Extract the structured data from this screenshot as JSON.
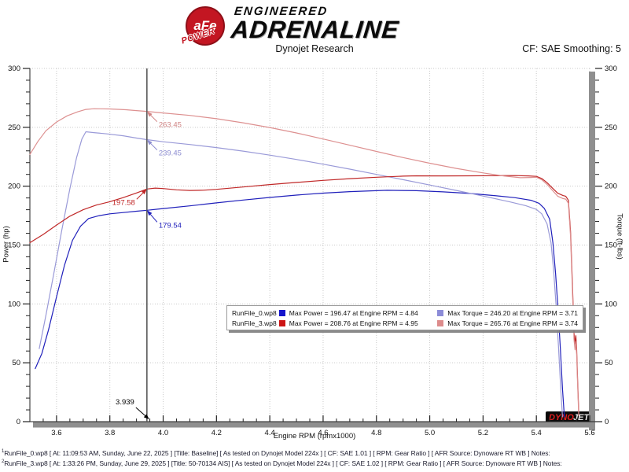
{
  "header": {
    "brand_circle": "aFe",
    "brand_ribbon": "POWER",
    "brand_line1": "ENGINEERED",
    "brand_line2": "ADRENALINE",
    "report_title": "Dynojet Research",
    "cf_setting": "CF: SAE Smoothing: 5"
  },
  "chart_data": {
    "type": "line",
    "axes": {
      "x": {
        "min": 3.5,
        "max": 5.6,
        "major": 0.2,
        "minor": 0.05,
        "first_major": 3.6,
        "label": "Engine RPM (rpmx1000)"
      },
      "y": {
        "min": 0,
        "max": 300,
        "major": 50,
        "minor": 10,
        "left_label": "Power (hp)",
        "right_label": "Torque (ft-lbs)"
      }
    },
    "grid": "dotted",
    "series": [
      {
        "name": "RunFile_0 Power (hp)",
        "color": "#2020bb",
        "points": [
          [
            3.52,
            45
          ],
          [
            3.545,
            58
          ],
          [
            3.57,
            78
          ],
          [
            3.6,
            106
          ],
          [
            3.63,
            133
          ],
          [
            3.66,
            154
          ],
          [
            3.69,
            166
          ],
          [
            3.72,
            172.5
          ],
          [
            3.76,
            175
          ],
          [
            3.8,
            176.5
          ],
          [
            3.85,
            177.6
          ],
          [
            3.9,
            178.7
          ],
          [
            3.939,
            179.5
          ],
          [
            4.0,
            181
          ],
          [
            4.1,
            183.3
          ],
          [
            4.2,
            185.8
          ],
          [
            4.3,
            188.2
          ],
          [
            4.4,
            190.4
          ],
          [
            4.5,
            192.4
          ],
          [
            4.6,
            194.1
          ],
          [
            4.7,
            195.4
          ],
          [
            4.84,
            196.5
          ],
          [
            4.95,
            196.2
          ],
          [
            5.05,
            195.2
          ],
          [
            5.15,
            193.8
          ],
          [
            5.25,
            191.8
          ],
          [
            5.32,
            190.2
          ],
          [
            5.38,
            188
          ],
          [
            5.41,
            185.5
          ],
          [
            5.43,
            181
          ],
          [
            5.45,
            172
          ],
          [
            5.462,
            152
          ],
          [
            5.472,
            126
          ],
          [
            5.481,
            96
          ],
          [
            5.49,
            62
          ],
          [
            5.498,
            28
          ],
          [
            5.505,
            4
          ]
        ]
      },
      {
        "name": "RunFile_0 Torque (ft-lbs)",
        "color": "#9a9ad8",
        "points": [
          [
            3.535,
            62
          ],
          [
            3.56,
            90
          ],
          [
            3.59,
            126
          ],
          [
            3.62,
            163
          ],
          [
            3.65,
            198
          ],
          [
            3.675,
            224
          ],
          [
            3.695,
            240
          ],
          [
            3.71,
            246.2
          ],
          [
            3.74,
            245.5
          ],
          [
            3.79,
            244.4
          ],
          [
            3.85,
            242.8
          ],
          [
            3.9,
            240.9
          ],
          [
            3.939,
            239.5
          ],
          [
            4.0,
            237.7
          ],
          [
            4.1,
            235.4
          ],
          [
            4.2,
            232.8
          ],
          [
            4.3,
            229.8
          ],
          [
            4.4,
            226.4
          ],
          [
            4.5,
            222.7
          ],
          [
            4.6,
            218.7
          ],
          [
            4.7,
            214.5
          ],
          [
            4.8,
            210
          ],
          [
            4.9,
            205.5
          ],
          [
            5.0,
            201
          ],
          [
            5.1,
            196.4
          ],
          [
            5.2,
            191.6
          ],
          [
            5.3,
            186.7
          ],
          [
            5.36,
            183.5
          ],
          [
            5.4,
            180.3
          ],
          [
            5.42,
            176.5
          ],
          [
            5.44,
            168
          ],
          [
            5.455,
            152
          ],
          [
            5.465,
            128
          ],
          [
            5.474,
            98
          ],
          [
            5.483,
            64
          ],
          [
            5.491,
            30
          ],
          [
            5.498,
            4
          ]
        ]
      },
      {
        "name": "RunFile_3 Power (hp)",
        "color": "#c02828",
        "points": [
          [
            3.5,
            152
          ],
          [
            3.55,
            159
          ],
          [
            3.6,
            167
          ],
          [
            3.65,
            174.5
          ],
          [
            3.7,
            180
          ],
          [
            3.75,
            184
          ],
          [
            3.8,
            186.8
          ],
          [
            3.85,
            190.3
          ],
          [
            3.9,
            194.2
          ],
          [
            3.939,
            197.6
          ],
          [
            3.97,
            198.4
          ],
          [
            4.0,
            198
          ],
          [
            4.05,
            196.9
          ],
          [
            4.1,
            196.4
          ],
          [
            4.15,
            196.6
          ],
          [
            4.2,
            197.3
          ],
          [
            4.3,
            199.3
          ],
          [
            4.4,
            201.4
          ],
          [
            4.5,
            203.2
          ],
          [
            4.6,
            204.9
          ],
          [
            4.7,
            206.4
          ],
          [
            4.8,
            207.6
          ],
          [
            4.9,
            208.5
          ],
          [
            4.95,
            208.8
          ],
          [
            5.05,
            208.7
          ],
          [
            5.15,
            208.8
          ],
          [
            5.25,
            208.9
          ],
          [
            5.32,
            209
          ],
          [
            5.37,
            208.7
          ],
          [
            5.4,
            208.3
          ],
          [
            5.42,
            206.5
          ],
          [
            5.44,
            203
          ],
          [
            5.46,
            198.5
          ],
          [
            5.48,
            194
          ],
          [
            5.5,
            192
          ],
          [
            5.51,
            191.5
          ],
          [
            5.52,
            188
          ],
          [
            5.528,
            162
          ],
          [
            5.535,
            118
          ],
          [
            5.541,
            76
          ],
          [
            5.545,
            66
          ],
          [
            5.548,
            73
          ],
          [
            5.551,
            62
          ],
          [
            5.555,
            34
          ],
          [
            5.559,
            8
          ]
        ]
      },
      {
        "name": "RunFile_3 Torque (ft-lbs)",
        "color": "#dd9090",
        "points": [
          [
            3.5,
            227
          ],
          [
            3.53,
            238
          ],
          [
            3.56,
            247
          ],
          [
            3.6,
            254.5
          ],
          [
            3.64,
            259.8
          ],
          [
            3.68,
            263.2
          ],
          [
            3.71,
            265.2
          ],
          [
            3.74,
            265.8
          ],
          [
            3.8,
            265.6
          ],
          [
            3.86,
            264.9
          ],
          [
            3.9,
            264.2
          ],
          [
            3.939,
            263.5
          ],
          [
            4.0,
            262.2
          ],
          [
            4.1,
            260.1
          ],
          [
            4.2,
            257.3
          ],
          [
            4.3,
            253.8
          ],
          [
            4.4,
            249.8
          ],
          [
            4.5,
            245.2
          ],
          [
            4.6,
            240.1
          ],
          [
            4.7,
            234.8
          ],
          [
            4.8,
            229.5
          ],
          [
            4.9,
            224.3
          ],
          [
            5.0,
            219.5
          ],
          [
            5.1,
            215.1
          ],
          [
            5.2,
            211.3
          ],
          [
            5.28,
            208.6
          ],
          [
            5.34,
            207.2
          ],
          [
            5.38,
            207.4
          ],
          [
            5.4,
            207.6
          ],
          [
            5.42,
            205.5
          ],
          [
            5.44,
            201.5
          ],
          [
            5.46,
            196.5
          ],
          [
            5.48,
            191.5
          ],
          [
            5.5,
            189.5
          ],
          [
            5.51,
            189
          ],
          [
            5.52,
            185.5
          ],
          [
            5.528,
            158
          ],
          [
            5.535,
            112
          ],
          [
            5.541,
            70
          ],
          [
            5.545,
            61
          ],
          [
            5.548,
            68
          ],
          [
            5.551,
            57
          ],
          [
            5.555,
            30
          ],
          [
            5.559,
            5
          ]
        ]
      }
    ],
    "cursor": {
      "x": 3.939,
      "x_label": "3.939",
      "markers": [
        {
          "label": "263.45",
          "value": 263.45,
          "color": "#d08484",
          "tail": [
            13,
            13
          ],
          "text": [
            15,
            20
          ],
          "anchor": "start"
        },
        {
          "label": "239.45",
          "value": 239.45,
          "color": "#8c8cd0",
          "tail": [
            13,
            13
          ],
          "text": [
            15,
            20
          ],
          "anchor": "start"
        },
        {
          "label": "197.58",
          "value": 197.58,
          "color": "#c02828",
          "tail": [
            -13,
            13
          ],
          "text": [
            -15,
            20
          ],
          "anchor": "end"
        },
        {
          "label": "179.54",
          "value": 179.54,
          "color": "#2020bb",
          "tail": [
            13,
            15
          ],
          "text": [
            15,
            22
          ],
          "anchor": "start"
        }
      ]
    },
    "legend": {
      "rows": [
        {
          "file": "RunFile_0.wp8",
          "power_color": "#1414cc",
          "power_text": "Max Power = 196.47 at Engine RPM = 4.84",
          "torque_color": "#8c8cd8",
          "torque_text": "Max Torque = 246.20 at Engine RPM = 3.71"
        },
        {
          "file": "RunFile_3.wp8",
          "power_color": "#cc1414",
          "power_text": "Max Power = 208.76 at Engine RPM = 4.95",
          "torque_color": "#dd8c8c",
          "torque_text": "Max Torque = 265.76 at Engine RPM = 3.74"
        }
      ]
    },
    "watermark": {
      "dyno": "DYNO",
      "jet": "JET"
    }
  },
  "footer": {
    "lines": [
      {
        "sup": "1",
        "text": "RunFile_0.wp8 [ At: 11:09:53 AM, Sunday, June 22, 2025 ] [Title: Baseline]  [ As tested on Dynojet Model 224x ] [ CF: SAE 1.01 ] [ RPM: Gear Ratio ] [ AFR Source: Dynoware RT WB ] Notes:"
      },
      {
        "sup": "2",
        "text": "RunFile_3.wp8 [ At: 1:33:26 PM, Sunday, June 29, 2025 ] [Title: 50-70134 AIS]  [ As tested on Dynojet Model 224x ] [ CF: SAE 1.02 ] [ RPM: Gear Ratio ] [ AFR Source: Dynoware RT WB ] Notes:"
      }
    ]
  }
}
